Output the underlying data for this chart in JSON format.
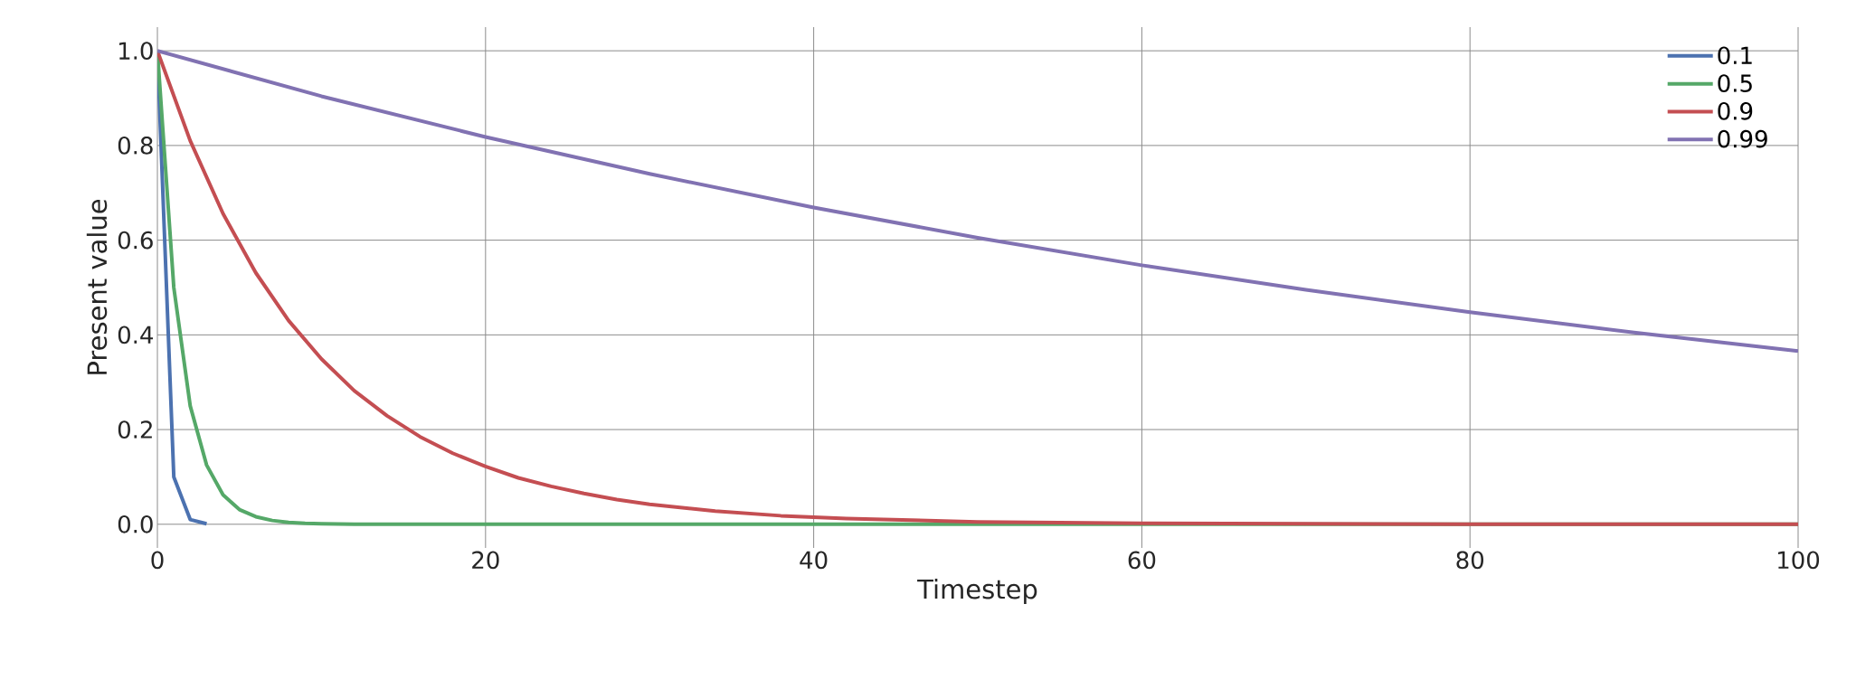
{
  "chart_data": {
    "type": "line",
    "xlabel": "Timestep",
    "ylabel": "Present value",
    "xlim": [
      0,
      100
    ],
    "ylim": [
      -0.05,
      1.05
    ],
    "xticks": [
      0,
      20,
      40,
      60,
      80,
      100
    ],
    "yticks": [
      {
        "value": 0,
        "label": "0.0"
      },
      {
        "value": 0.2,
        "label": "0.2"
      },
      {
        "value": 0.4,
        "label": "0.4"
      },
      {
        "value": 0.6,
        "label": "0.6"
      },
      {
        "value": 0.8,
        "label": "0.8"
      },
      {
        "value": 1,
        "label": "1.0"
      }
    ],
    "grid": true,
    "legend": "top right",
    "marker": "none",
    "line_style": "solid",
    "series": [
      {
        "name": "0.1",
        "color": "#4c72b0",
        "x": [
          0,
          1,
          2,
          3
        ],
        "values": [
          1,
          0.1,
          0.01,
          0.001
        ]
      },
      {
        "name": "0.5",
        "color": "#55a868",
        "x": [
          0,
          1,
          2,
          3,
          4,
          5,
          6,
          7,
          8,
          9,
          10,
          12,
          100
        ],
        "values": [
          1,
          0.5,
          0.25,
          0.125,
          0.062,
          0.031,
          0.016,
          0.008,
          0.004,
          0.002,
          0.001,
          0,
          0
        ]
      },
      {
        "name": "0.9",
        "color": "#c44e52",
        "x": [
          0,
          2,
          4,
          6,
          8,
          10,
          12,
          14,
          16,
          18,
          20,
          22,
          24,
          26,
          28,
          30,
          34,
          38,
          42,
          50,
          60,
          70,
          80,
          100
        ],
        "values": [
          1,
          0.81,
          0.656,
          0.531,
          0.43,
          0.349,
          0.282,
          0.229,
          0.185,
          0.15,
          0.122,
          0.098,
          0.08,
          0.065,
          0.052,
          0.042,
          0.028,
          0.018,
          0.012,
          0.005,
          0.002,
          0.001,
          0,
          0
        ]
      },
      {
        "name": "0.99",
        "color": "#8172b2",
        "x": [
          0,
          10,
          20,
          30,
          40,
          50,
          60,
          70,
          80,
          90,
          100
        ],
        "values": [
          1,
          0.904,
          0.818,
          0.74,
          0.669,
          0.605,
          0.547,
          0.495,
          0.448,
          0.405,
          0.366
        ]
      }
    ]
  }
}
